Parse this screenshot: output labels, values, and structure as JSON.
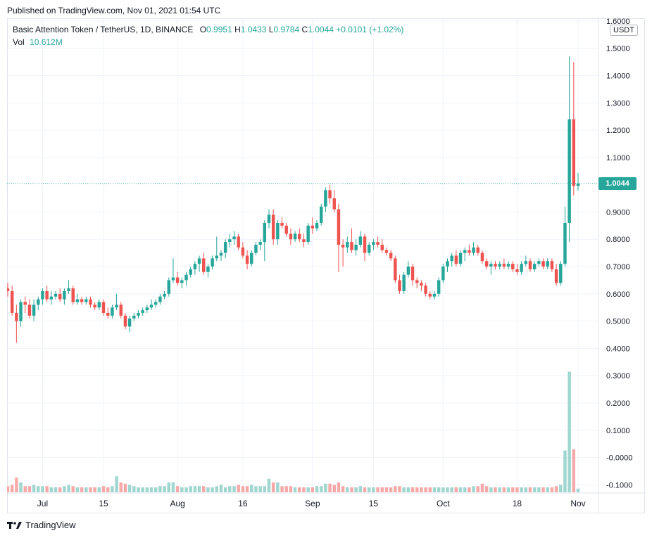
{
  "header": {
    "published": "Published on TradingView.com, Nov 01, 2021 01:54 UTC"
  },
  "legend": {
    "symbol": "Basic Attention Token / TetherUS, 1D, BINANCE",
    "o_label": "O",
    "o_value": "0.9951",
    "h_label": "H",
    "h_value": "1.0433",
    "l_label": "L",
    "l_value": "0.9784",
    "c_label": "C",
    "c_value": "1.0044",
    "change": "+0.0101 (+1.02%)",
    "vol_label": "Vol",
    "vol_value": "10.612M"
  },
  "axis": {
    "currency": "USDT",
    "last_price": "1.0044",
    "y_ticks": [
      "1.6000",
      "1.5000",
      "1.4000",
      "1.3000",
      "1.2000",
      "1.1000",
      "0.9000",
      "0.8000",
      "0.7000",
      "0.6000",
      "0.5000",
      "0.4000",
      "0.3000",
      "0.2000",
      "0.1000",
      "-0.0000",
      "-0.1000"
    ],
    "x_ticks": [
      "Jul",
      "15",
      "Aug",
      "16",
      "Sep",
      "15",
      "Oct",
      "18",
      "Nov"
    ]
  },
  "footer": {
    "brand": "TradingView"
  },
  "colors": {
    "up": "#26a69a",
    "down": "#ef5350",
    "vol_up": "#9fd6d0",
    "vol_down": "#f6a9a8",
    "grid": "#f0f3fa"
  },
  "chart_data": {
    "type": "candlestick",
    "title": "Basic Attention Token / TetherUS, 1D, BINANCE",
    "x_range": [
      "2021-06-23",
      "2021-11-01"
    ],
    "y_range": [
      -0.13,
      1.61
    ],
    "x_ticks": [
      {
        "label": "Jul",
        "date": "2021-07-01"
      },
      {
        "label": "15",
        "date": "2021-07-15"
      },
      {
        "label": "Aug",
        "date": "2021-08-01"
      },
      {
        "label": "16",
        "date": "2021-08-16"
      },
      {
        "label": "Sep",
        "date": "2021-09-01"
      },
      {
        "label": "15",
        "date": "2021-09-15"
      },
      {
        "label": "Oct",
        "date": "2021-10-01"
      },
      {
        "label": "18",
        "date": "2021-10-18"
      },
      {
        "label": "Nov",
        "date": "2021-11-01"
      }
    ],
    "candles": [
      {
        "date": "2021-06-23",
        "o": 0.62,
        "h": 0.64,
        "l": 0.59,
        "c": 0.61
      },
      {
        "date": "2021-06-24",
        "o": 0.61,
        "h": 0.63,
        "l": 0.52,
        "c": 0.53
      },
      {
        "date": "2021-06-25",
        "o": 0.53,
        "h": 0.56,
        "l": 0.42,
        "c": 0.5
      },
      {
        "date": "2021-06-26",
        "o": 0.5,
        "h": 0.58,
        "l": 0.48,
        "c": 0.57
      },
      {
        "date": "2021-06-27",
        "o": 0.57,
        "h": 0.59,
        "l": 0.53,
        "c": 0.56
      },
      {
        "date": "2021-06-28",
        "o": 0.56,
        "h": 0.58,
        "l": 0.51,
        "c": 0.52
      },
      {
        "date": "2021-06-29",
        "o": 0.52,
        "h": 0.58,
        "l": 0.5,
        "c": 0.56
      },
      {
        "date": "2021-06-30",
        "o": 0.56,
        "h": 0.59,
        "l": 0.54,
        "c": 0.58
      },
      {
        "date": "2021-07-01",
        "o": 0.58,
        "h": 0.62,
        "l": 0.56,
        "c": 0.61
      },
      {
        "date": "2021-07-02",
        "o": 0.61,
        "h": 0.63,
        "l": 0.57,
        "c": 0.58
      },
      {
        "date": "2021-07-03",
        "o": 0.58,
        "h": 0.61,
        "l": 0.56,
        "c": 0.59
      },
      {
        "date": "2021-07-04",
        "o": 0.59,
        "h": 0.61,
        "l": 0.58,
        "c": 0.6
      },
      {
        "date": "2021-07-05",
        "o": 0.6,
        "h": 0.62,
        "l": 0.57,
        "c": 0.58
      },
      {
        "date": "2021-07-06",
        "o": 0.58,
        "h": 0.62,
        "l": 0.56,
        "c": 0.61
      },
      {
        "date": "2021-07-07",
        "o": 0.61,
        "h": 0.65,
        "l": 0.6,
        "c": 0.62
      },
      {
        "date": "2021-07-08",
        "o": 0.62,
        "h": 0.63,
        "l": 0.56,
        "c": 0.57
      },
      {
        "date": "2021-07-09",
        "o": 0.57,
        "h": 0.6,
        "l": 0.56,
        "c": 0.58
      },
      {
        "date": "2021-07-10",
        "o": 0.58,
        "h": 0.59,
        "l": 0.56,
        "c": 0.57
      },
      {
        "date": "2021-07-11",
        "o": 0.57,
        "h": 0.59,
        "l": 0.56,
        "c": 0.58
      },
      {
        "date": "2021-07-12",
        "o": 0.58,
        "h": 0.59,
        "l": 0.55,
        "c": 0.56
      },
      {
        "date": "2021-07-13",
        "o": 0.56,
        "h": 0.57,
        "l": 0.54,
        "c": 0.55
      },
      {
        "date": "2021-07-14",
        "o": 0.55,
        "h": 0.58,
        "l": 0.54,
        "c": 0.57
      },
      {
        "date": "2021-07-15",
        "o": 0.57,
        "h": 0.58,
        "l": 0.52,
        "c": 0.53
      },
      {
        "date": "2021-07-16",
        "o": 0.53,
        "h": 0.55,
        "l": 0.51,
        "c": 0.52
      },
      {
        "date": "2021-07-17",
        "o": 0.52,
        "h": 0.56,
        "l": 0.51,
        "c": 0.55
      },
      {
        "date": "2021-07-18",
        "o": 0.55,
        "h": 0.6,
        "l": 0.54,
        "c": 0.56
      },
      {
        "date": "2021-07-19",
        "o": 0.56,
        "h": 0.57,
        "l": 0.51,
        "c": 0.52
      },
      {
        "date": "2021-07-20",
        "o": 0.52,
        "h": 0.53,
        "l": 0.47,
        "c": 0.48
      },
      {
        "date": "2021-07-21",
        "o": 0.48,
        "h": 0.52,
        "l": 0.46,
        "c": 0.51
      },
      {
        "date": "2021-07-22",
        "o": 0.51,
        "h": 0.53,
        "l": 0.5,
        "c": 0.52
      },
      {
        "date": "2021-07-23",
        "o": 0.52,
        "h": 0.54,
        "l": 0.51,
        "c": 0.53
      },
      {
        "date": "2021-07-24",
        "o": 0.53,
        "h": 0.55,
        "l": 0.52,
        "c": 0.54
      },
      {
        "date": "2021-07-25",
        "o": 0.54,
        "h": 0.56,
        "l": 0.53,
        "c": 0.55
      },
      {
        "date": "2021-07-26",
        "o": 0.55,
        "h": 0.58,
        "l": 0.54,
        "c": 0.56
      },
      {
        "date": "2021-07-27",
        "o": 0.56,
        "h": 0.58,
        "l": 0.55,
        "c": 0.57
      },
      {
        "date": "2021-07-28",
        "o": 0.57,
        "h": 0.6,
        "l": 0.56,
        "c": 0.59
      },
      {
        "date": "2021-07-29",
        "o": 0.59,
        "h": 0.61,
        "l": 0.58,
        "c": 0.6
      },
      {
        "date": "2021-07-30",
        "o": 0.6,
        "h": 0.66,
        "l": 0.59,
        "c": 0.65
      },
      {
        "date": "2021-07-31",
        "o": 0.65,
        "h": 0.73,
        "l": 0.64,
        "c": 0.66
      },
      {
        "date": "2021-08-01",
        "o": 0.66,
        "h": 0.68,
        "l": 0.63,
        "c": 0.64
      },
      {
        "date": "2021-08-02",
        "o": 0.64,
        "h": 0.66,
        "l": 0.62,
        "c": 0.65
      },
      {
        "date": "2021-08-03",
        "o": 0.65,
        "h": 0.68,
        "l": 0.63,
        "c": 0.67
      },
      {
        "date": "2021-08-04",
        "o": 0.67,
        "h": 0.7,
        "l": 0.66,
        "c": 0.69
      },
      {
        "date": "2021-08-05",
        "o": 0.69,
        "h": 0.72,
        "l": 0.67,
        "c": 0.71
      },
      {
        "date": "2021-08-06",
        "o": 0.71,
        "h": 0.74,
        "l": 0.68,
        "c": 0.73
      },
      {
        "date": "2021-08-07",
        "o": 0.73,
        "h": 0.75,
        "l": 0.67,
        "c": 0.68
      },
      {
        "date": "2021-08-08",
        "o": 0.68,
        "h": 0.71,
        "l": 0.66,
        "c": 0.7
      },
      {
        "date": "2021-08-09",
        "o": 0.7,
        "h": 0.74,
        "l": 0.69,
        "c": 0.73
      },
      {
        "date": "2021-08-10",
        "o": 0.73,
        "h": 0.81,
        "l": 0.72,
        "c": 0.74
      },
      {
        "date": "2021-08-11",
        "o": 0.74,
        "h": 0.76,
        "l": 0.72,
        "c": 0.75
      },
      {
        "date": "2021-08-12",
        "o": 0.75,
        "h": 0.8,
        "l": 0.73,
        "c": 0.79
      },
      {
        "date": "2021-08-13",
        "o": 0.79,
        "h": 0.82,
        "l": 0.77,
        "c": 0.8
      },
      {
        "date": "2021-08-14",
        "o": 0.8,
        "h": 0.83,
        "l": 0.78,
        "c": 0.81
      },
      {
        "date": "2021-08-15",
        "o": 0.81,
        "h": 0.82,
        "l": 0.76,
        "c": 0.77
      },
      {
        "date": "2021-08-16",
        "o": 0.77,
        "h": 0.79,
        "l": 0.73,
        "c": 0.74
      },
      {
        "date": "2021-08-17",
        "o": 0.74,
        "h": 0.76,
        "l": 0.69,
        "c": 0.71
      },
      {
        "date": "2021-08-18",
        "o": 0.71,
        "h": 0.76,
        "l": 0.7,
        "c": 0.75
      },
      {
        "date": "2021-08-19",
        "o": 0.75,
        "h": 0.79,
        "l": 0.74,
        "c": 0.78
      },
      {
        "date": "2021-08-20",
        "o": 0.78,
        "h": 0.8,
        "l": 0.76,
        "c": 0.79
      },
      {
        "date": "2021-08-21",
        "o": 0.79,
        "h": 0.87,
        "l": 0.72,
        "c": 0.86
      },
      {
        "date": "2021-08-22",
        "o": 0.86,
        "h": 0.91,
        "l": 0.84,
        "c": 0.89
      },
      {
        "date": "2021-08-23",
        "o": 0.89,
        "h": 0.91,
        "l": 0.78,
        "c": 0.8
      },
      {
        "date": "2021-08-24",
        "o": 0.8,
        "h": 0.87,
        "l": 0.78,
        "c": 0.86
      },
      {
        "date": "2021-08-25",
        "o": 0.86,
        "h": 0.88,
        "l": 0.84,
        "c": 0.85
      },
      {
        "date": "2021-08-26",
        "o": 0.85,
        "h": 0.86,
        "l": 0.81,
        "c": 0.82
      },
      {
        "date": "2021-08-27",
        "o": 0.82,
        "h": 0.84,
        "l": 0.78,
        "c": 0.8
      },
      {
        "date": "2021-08-28",
        "o": 0.8,
        "h": 0.83,
        "l": 0.79,
        "c": 0.82
      },
      {
        "date": "2021-08-29",
        "o": 0.82,
        "h": 0.84,
        "l": 0.79,
        "c": 0.8
      },
      {
        "date": "2021-08-30",
        "o": 0.8,
        "h": 0.82,
        "l": 0.77,
        "c": 0.79
      },
      {
        "date": "2021-08-31",
        "o": 0.79,
        "h": 0.86,
        "l": 0.78,
        "c": 0.85
      },
      {
        "date": "2021-09-01",
        "o": 0.85,
        "h": 0.88,
        "l": 0.82,
        "c": 0.84
      },
      {
        "date": "2021-09-02",
        "o": 0.84,
        "h": 0.87,
        "l": 0.83,
        "c": 0.86
      },
      {
        "date": "2021-09-03",
        "o": 0.86,
        "h": 0.93,
        "l": 0.85,
        "c": 0.92
      },
      {
        "date": "2021-09-04",
        "o": 0.92,
        "h": 0.99,
        "l": 0.9,
        "c": 0.98
      },
      {
        "date": "2021-09-05",
        "o": 0.98,
        "h": 1.0,
        "l": 0.93,
        "c": 0.95
      },
      {
        "date": "2021-09-06",
        "o": 0.95,
        "h": 0.98,
        "l": 0.9,
        "c": 0.91
      },
      {
        "date": "2021-09-07",
        "o": 0.91,
        "h": 0.93,
        "l": 0.68,
        "c": 0.78
      },
      {
        "date": "2021-09-08",
        "o": 0.78,
        "h": 0.8,
        "l": 0.7,
        "c": 0.77
      },
      {
        "date": "2021-09-09",
        "o": 0.77,
        "h": 0.81,
        "l": 0.75,
        "c": 0.79
      },
      {
        "date": "2021-09-10",
        "o": 0.79,
        "h": 0.84,
        "l": 0.75,
        "c": 0.76
      },
      {
        "date": "2021-09-11",
        "o": 0.76,
        "h": 0.8,
        "l": 0.74,
        "c": 0.78
      },
      {
        "date": "2021-09-12",
        "o": 0.78,
        "h": 0.83,
        "l": 0.77,
        "c": 0.81
      },
      {
        "date": "2021-09-13",
        "o": 0.81,
        "h": 0.82,
        "l": 0.72,
        "c": 0.75
      },
      {
        "date": "2021-09-14",
        "o": 0.75,
        "h": 0.79,
        "l": 0.74,
        "c": 0.78
      },
      {
        "date": "2021-09-15",
        "o": 0.78,
        "h": 0.8,
        "l": 0.76,
        "c": 0.79
      },
      {
        "date": "2021-09-16",
        "o": 0.79,
        "h": 0.81,
        "l": 0.77,
        "c": 0.78
      },
      {
        "date": "2021-09-17",
        "o": 0.78,
        "h": 0.8,
        "l": 0.75,
        "c": 0.76
      },
      {
        "date": "2021-09-18",
        "o": 0.76,
        "h": 0.77,
        "l": 0.74,
        "c": 0.75
      },
      {
        "date": "2021-09-19",
        "o": 0.75,
        "h": 0.76,
        "l": 0.72,
        "c": 0.73
      },
      {
        "date": "2021-09-20",
        "o": 0.73,
        "h": 0.74,
        "l": 0.64,
        "c": 0.65
      },
      {
        "date": "2021-09-21",
        "o": 0.65,
        "h": 0.67,
        "l": 0.6,
        "c": 0.61
      },
      {
        "date": "2021-09-22",
        "o": 0.61,
        "h": 0.68,
        "l": 0.6,
        "c": 0.67
      },
      {
        "date": "2021-09-23",
        "o": 0.67,
        "h": 0.72,
        "l": 0.66,
        "c": 0.7
      },
      {
        "date": "2021-09-24",
        "o": 0.7,
        "h": 0.71,
        "l": 0.63,
        "c": 0.65
      },
      {
        "date": "2021-09-25",
        "o": 0.65,
        "h": 0.66,
        "l": 0.62,
        "c": 0.64
      },
      {
        "date": "2021-09-26",
        "o": 0.64,
        "h": 0.65,
        "l": 0.61,
        "c": 0.63
      },
      {
        "date": "2021-09-27",
        "o": 0.63,
        "h": 0.64,
        "l": 0.59,
        "c": 0.6
      },
      {
        "date": "2021-09-28",
        "o": 0.6,
        "h": 0.61,
        "l": 0.58,
        "c": 0.59
      },
      {
        "date": "2021-09-29",
        "o": 0.59,
        "h": 0.61,
        "l": 0.58,
        "c": 0.6
      },
      {
        "date": "2021-09-30",
        "o": 0.6,
        "h": 0.66,
        "l": 0.59,
        "c": 0.65
      },
      {
        "date": "2021-10-01",
        "o": 0.65,
        "h": 0.71,
        "l": 0.64,
        "c": 0.7
      },
      {
        "date": "2021-10-02",
        "o": 0.7,
        "h": 0.73,
        "l": 0.68,
        "c": 0.72
      },
      {
        "date": "2021-10-03",
        "o": 0.72,
        "h": 0.75,
        "l": 0.7,
        "c": 0.74
      },
      {
        "date": "2021-10-04",
        "o": 0.74,
        "h": 0.76,
        "l": 0.7,
        "c": 0.71
      },
      {
        "date": "2021-10-05",
        "o": 0.71,
        "h": 0.76,
        "l": 0.7,
        "c": 0.75
      },
      {
        "date": "2021-10-06",
        "o": 0.75,
        "h": 0.77,
        "l": 0.72,
        "c": 0.76
      },
      {
        "date": "2021-10-07",
        "o": 0.76,
        "h": 0.78,
        "l": 0.74,
        "c": 0.75
      },
      {
        "date": "2021-10-08",
        "o": 0.75,
        "h": 0.79,
        "l": 0.74,
        "c": 0.77
      },
      {
        "date": "2021-10-09",
        "o": 0.77,
        "h": 0.78,
        "l": 0.74,
        "c": 0.75
      },
      {
        "date": "2021-10-10",
        "o": 0.75,
        "h": 0.76,
        "l": 0.71,
        "c": 0.72
      },
      {
        "date": "2021-10-11",
        "o": 0.72,
        "h": 0.73,
        "l": 0.69,
        "c": 0.7
      },
      {
        "date": "2021-10-12",
        "o": 0.7,
        "h": 0.72,
        "l": 0.67,
        "c": 0.71
      },
      {
        "date": "2021-10-13",
        "o": 0.71,
        "h": 0.72,
        "l": 0.69,
        "c": 0.7
      },
      {
        "date": "2021-10-14",
        "o": 0.7,
        "h": 0.72,
        "l": 0.69,
        "c": 0.71
      },
      {
        "date": "2021-10-15",
        "o": 0.71,
        "h": 0.73,
        "l": 0.69,
        "c": 0.7
      },
      {
        "date": "2021-10-16",
        "o": 0.7,
        "h": 0.72,
        "l": 0.69,
        "c": 0.71
      },
      {
        "date": "2021-10-17",
        "o": 0.71,
        "h": 0.72,
        "l": 0.68,
        "c": 0.69
      },
      {
        "date": "2021-10-18",
        "o": 0.69,
        "h": 0.71,
        "l": 0.67,
        "c": 0.68
      },
      {
        "date": "2021-10-19",
        "o": 0.68,
        "h": 0.72,
        "l": 0.67,
        "c": 0.71
      },
      {
        "date": "2021-10-20",
        "o": 0.71,
        "h": 0.74,
        "l": 0.7,
        "c": 0.72
      },
      {
        "date": "2021-10-21",
        "o": 0.72,
        "h": 0.73,
        "l": 0.68,
        "c": 0.69
      },
      {
        "date": "2021-10-22",
        "o": 0.69,
        "h": 0.72,
        "l": 0.68,
        "c": 0.71
      },
      {
        "date": "2021-10-23",
        "o": 0.71,
        "h": 0.73,
        "l": 0.7,
        "c": 0.72
      },
      {
        "date": "2021-10-24",
        "o": 0.72,
        "h": 0.73,
        "l": 0.69,
        "c": 0.7
      },
      {
        "date": "2021-10-25",
        "o": 0.7,
        "h": 0.73,
        "l": 0.69,
        "c": 0.72
      },
      {
        "date": "2021-10-26",
        "o": 0.72,
        "h": 0.73,
        "l": 0.68,
        "c": 0.69
      },
      {
        "date": "2021-10-27",
        "o": 0.69,
        "h": 0.71,
        "l": 0.63,
        "c": 0.64
      },
      {
        "date": "2021-10-28",
        "o": 0.64,
        "h": 0.72,
        "l": 0.63,
        "c": 0.71
      },
      {
        "date": "2021-10-29",
        "o": 0.71,
        "h": 0.92,
        "l": 0.7,
        "c": 0.86
      },
      {
        "date": "2021-10-30",
        "o": 0.86,
        "h": 1.47,
        "l": 0.79,
        "c": 1.24
      },
      {
        "date": "2021-10-31",
        "o": 1.24,
        "h": 1.45,
        "l": 0.96,
        "c": 0.995
      },
      {
        "date": "2021-11-01",
        "o": 0.9951,
        "h": 1.0433,
        "l": 0.9784,
        "c": 1.0044
      }
    ],
    "volume_relative": [
      0.05,
      0.06,
      0.12,
      0.08,
      0.05,
      0.05,
      0.06,
      0.05,
      0.05,
      0.05,
      0.04,
      0.04,
      0.04,
      0.05,
      0.06,
      0.05,
      0.04,
      0.04,
      0.04,
      0.04,
      0.04,
      0.04,
      0.05,
      0.04,
      0.05,
      0.13,
      0.08,
      0.07,
      0.06,
      0.05,
      0.04,
      0.04,
      0.04,
      0.04,
      0.04,
      0.05,
      0.05,
      0.08,
      0.08,
      0.05,
      0.04,
      0.04,
      0.05,
      0.05,
      0.05,
      0.05,
      0.04,
      0.04,
      0.05,
      0.06,
      0.04,
      0.05,
      0.05,
      0.06,
      0.05,
      0.05,
      0.06,
      0.05,
      0.05,
      0.05,
      0.11,
      0.08,
      0.08,
      0.05,
      0.05,
      0.05,
      0.04,
      0.04,
      0.04,
      0.04,
      0.04,
      0.05,
      0.05,
      0.07,
      0.07,
      0.06,
      0.08,
      0.05,
      0.04,
      0.04,
      0.04,
      0.05,
      0.04,
      0.04,
      0.04,
      0.04,
      0.04,
      0.04,
      0.04,
      0.05,
      0.05,
      0.04,
      0.04,
      0.04,
      0.04,
      0.04,
      0.04,
      0.04,
      0.04,
      0.04,
      0.04,
      0.04,
      0.04,
      0.04,
      0.04,
      0.04,
      0.04,
      0.05,
      0.05,
      0.07,
      0.05,
      0.04,
      0.04,
      0.04,
      0.04,
      0.04,
      0.04,
      0.04,
      0.04,
      0.04,
      0.04,
      0.04,
      0.04,
      0.04,
      0.04,
      0.04,
      0.05,
      0.06,
      0.34,
      0.98,
      0.35,
      0.03
    ]
  }
}
